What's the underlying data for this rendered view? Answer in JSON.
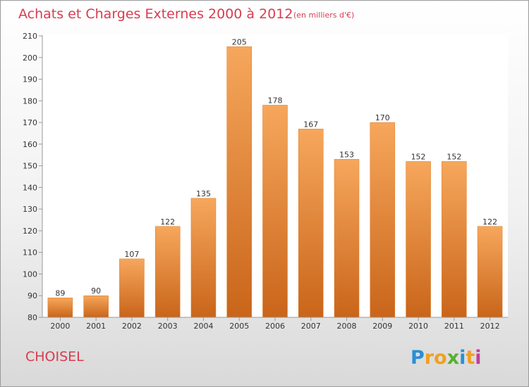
{
  "title": "Achats et Charges Externes 2000 à 2012",
  "subtitle": "(en milliers d'€)",
  "place": "CHOISEL",
  "logo": {
    "letters": [
      "P",
      "r",
      "o",
      "x",
      "i",
      "t",
      "i"
    ],
    "colors": [
      "#2a8fd6",
      "#f0a020",
      "#f0a020",
      "#55b030",
      "#2a8fd6",
      "#f0a020",
      "#c43c9c"
    ]
  },
  "colors": {
    "bar": "#f28e2b",
    "bar_light": "#f6a75c",
    "bar_dark": "#c9651a",
    "title": "#d83c50"
  },
  "chart_data": {
    "type": "bar",
    "categories": [
      "2000",
      "2001",
      "2002",
      "2003",
      "2004",
      "2005",
      "2006",
      "2007",
      "2008",
      "2009",
      "2010",
      "2011",
      "2012"
    ],
    "values": [
      89,
      90,
      107,
      122,
      135,
      205,
      178,
      167,
      153,
      170,
      152,
      152,
      122
    ],
    "ylim": [
      80,
      210
    ],
    "yticks": [
      80,
      90,
      100,
      110,
      120,
      130,
      140,
      150,
      160,
      170,
      180,
      190,
      200,
      210
    ],
    "grid": false,
    "xlabel": "",
    "ylabel": ""
  }
}
